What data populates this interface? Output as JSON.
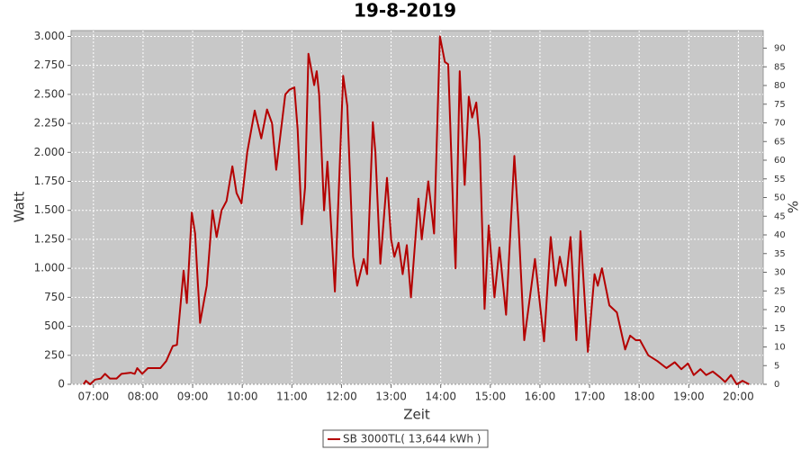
{
  "chart_data": {
    "type": "line",
    "title": "19-8-2019",
    "x_label": "Zeit",
    "y_label": "Watt",
    "y2_label": "%",
    "grid": true,
    "legend": "bottom",
    "xlim": [
      "06:33",
      "20:30"
    ],
    "xticks": [
      "07:00",
      "08:00",
      "09:00",
      "10:00",
      "11:00",
      "12:00",
      "13:00",
      "14:00",
      "15:00",
      "16:00",
      "17:00",
      "18:00",
      "19:00",
      "20:00"
    ],
    "ylim": [
      0,
      3050
    ],
    "yticks": [
      0,
      250,
      500,
      750,
      {
        "value": 1000,
        "label": "1.000"
      },
      {
        "value": 1250,
        "label": "1.250"
      },
      {
        "value": 1500,
        "label": "1.500"
      },
      {
        "value": 1750,
        "label": "1.750"
      },
      {
        "value": 2000,
        "label": "2.000"
      },
      {
        "value": 2250,
        "label": "2.250"
      },
      {
        "value": 2500,
        "label": "2.500"
      },
      {
        "value": 2750,
        "label": "2.750"
      },
      {
        "value": 3000,
        "label": "3.000"
      }
    ],
    "y2lim": [
      0,
      94.7
    ],
    "y2ticks": [
      0,
      5,
      10,
      15,
      20,
      25,
      30,
      35,
      40,
      45,
      50,
      55,
      60,
      65,
      70,
      75,
      80,
      85,
      90
    ],
    "x": [
      "06:48",
      "06:51",
      "06:56",
      "07:02",
      "07:09",
      "07:14",
      "07:20",
      "07:28",
      "07:34",
      "07:45",
      "07:50",
      "07:53",
      "07:59",
      "08:06",
      "08:21",
      "08:28",
      "08:36",
      "08:41",
      "08:49",
      "08:53",
      "08:59",
      "09:03",
      "09:09",
      "09:17",
      "09:24",
      "09:29",
      "09:35",
      "09:41",
      "09:48",
      "09:53",
      "09:59",
      "10:06",
      "10:15",
      "10:23",
      "10:30",
      "10:36",
      "10:41",
      "10:52",
      "10:57",
      "11:03",
      "11:07",
      "11:12",
      "11:16",
      "11:20",
      "11:27",
      "11:30",
      "11:33",
      "11:39",
      "11:43",
      "11:52",
      "12:02",
      "12:07",
      "12:14",
      "12:19",
      "12:27",
      "12:31",
      "12:38",
      "12:41",
      "12:47",
      "12:55",
      "13:00",
      "13:04",
      "13:09",
      "13:14",
      "13:19",
      "13:24",
      "13:33",
      "13:37",
      "13:45",
      "13:52",
      "13:59",
      "14:05",
      "14:09",
      "14:15",
      "14:18",
      "14:23",
      "14:29",
      "14:34",
      "14:38",
      "14:43",
      "14:47",
      "14:53",
      "14:58",
      "15:05",
      "15:11",
      "15:19",
      "15:29",
      "15:34",
      "15:41",
      "15:54",
      "16:05",
      "16:13",
      "16:19",
      "16:24",
      "16:31",
      "16:37",
      "16:44",
      "16:49",
      "16:58",
      "17:06",
      "17:10",
      "17:15",
      "17:24",
      "17:33",
      "17:43",
      "17:49",
      "17:56",
      "18:01",
      "18:11",
      "18:22",
      "18:33",
      "18:43",
      "18:51",
      "18:59",
      "19:06",
      "19:14",
      "19:21",
      "19:29",
      "19:38",
      "19:44",
      "19:51",
      "19:58",
      "20:05",
      "20:13"
    ],
    "series": [
      {
        "name": "SB 3000TL( 13,644 kWh )",
        "color": "#b40000",
        "values": [
          0,
          30,
          0,
          40,
          50,
          90,
          50,
          50,
          90,
          100,
          90,
          140,
          90,
          140,
          140,
          200,
          330,
          340,
          980,
          700,
          1480,
          1300,
          530,
          850,
          1500,
          1270,
          1500,
          1580,
          1880,
          1650,
          1560,
          2000,
          2360,
          2120,
          2370,
          2250,
          1850,
          2500,
          2540,
          2560,
          2200,
          1380,
          1700,
          2850,
          2580,
          2700,
          2500,
          1500,
          1920,
          800,
          2660,
          2400,
          1100,
          850,
          1080,
          950,
          2260,
          2000,
          1040,
          1780,
          1250,
          1100,
          1220,
          950,
          1200,
          750,
          1600,
          1250,
          1750,
          1300,
          3000,
          2780,
          2760,
          1500,
          1000,
          2700,
          1720,
          2480,
          2300,
          2430,
          2100,
          650,
          1370,
          750,
          1180,
          600,
          1970,
          1400,
          380,
          1080,
          370,
          1270,
          850,
          1100,
          850,
          1270,
          380,
          1320,
          280,
          950,
          850,
          1000,
          680,
          620,
          300,
          420,
          380,
          380,
          250,
          200,
          140,
          190,
          130,
          180,
          80,
          130,
          80,
          110,
          60,
          20,
          80,
          0,
          30,
          0
        ]
      }
    ]
  }
}
